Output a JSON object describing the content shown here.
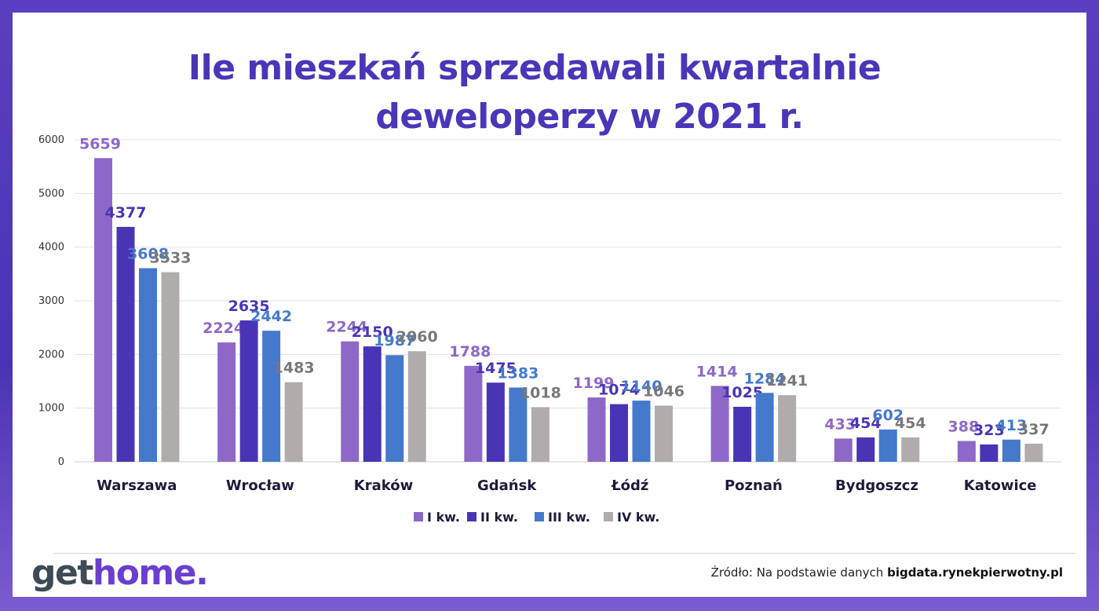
{
  "title_line1": "Ile mieszkań sprzedawali kwartalnie",
  "title_line2": "deweloperzy w 2021 r.",
  "logo": {
    "part1": "get",
    "part2": "home."
  },
  "source": {
    "prefix": "Źródło: Na podstawie danych",
    "site": "bigdata.rynekpierwotny.pl"
  },
  "colors": {
    "I": "#8e68c8",
    "II": "#4a34b6",
    "III": "#4479cc",
    "IV": "#b0acac"
  },
  "chart_data": {
    "type": "bar",
    "title": "Ile mieszkań sprzedawali kwartalnie deweloperzy w 2021 r.",
    "categories": [
      "Warszawa",
      "Wrocław",
      "Kraków",
      "Gdańsk",
      "Łódź",
      "Poznań",
      "Bydgoszcz",
      "Katowice"
    ],
    "series": [
      {
        "name": "I kw.",
        "values": [
          5659,
          2224,
          2244,
          1788,
          1199,
          1414,
          433,
          388
        ]
      },
      {
        "name": "II kw.",
        "values": [
          4377,
          2635,
          2150,
          1475,
          1074,
          1025,
          454,
          323
        ]
      },
      {
        "name": "III kw.",
        "values": [
          3608,
          2442,
          1987,
          1383,
          1140,
          1284,
          602,
          413
        ]
      },
      {
        "name": "IV kw.",
        "values": [
          3533,
          1483,
          2060,
          1018,
          1046,
          1241,
          454,
          337
        ]
      }
    ],
    "yticks": [
      "0",
      "1000",
      "2000",
      "3000",
      "4000",
      "5000",
      "6000"
    ],
    "ylim": [
      0,
      6000
    ],
    "grid": true,
    "legend": "bottom-center"
  }
}
